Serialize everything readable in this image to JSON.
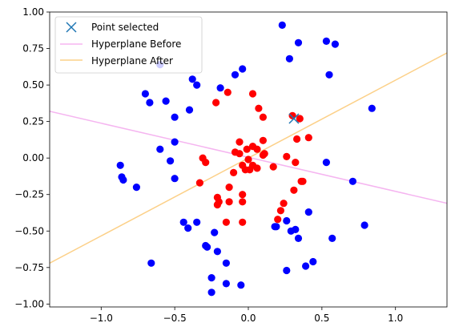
{
  "chart_data": {
    "type": "scatter",
    "xlim": [
      -1.35,
      1.35
    ],
    "ylim": [
      -1.02,
      1.0
    ],
    "x_ticks": [
      "−1.0",
      "−0.5",
      "0.0",
      "0.5",
      "1.0"
    ],
    "y_ticks": [
      "−1.00",
      "−0.75",
      "−0.50",
      "−0.25",
      "0.00",
      "0.25",
      "0.50",
      "0.75",
      "1.00"
    ],
    "grid": false,
    "legend_position": "top-left",
    "colors": {
      "class_blue": "#0000ff",
      "class_red": "#ff0000",
      "selected": "#1f77b4",
      "hyperplane_before": "#f5b5f0",
      "hyperplane_after": "#fcd088"
    },
    "legend": {
      "point_selected": "Point selected",
      "hyperplane_before": "Hyperplane Before",
      "hyperplane_after": "Hyperplane After"
    },
    "selected_point": {
      "x": 0.31,
      "y": 0.27
    },
    "hyperplane_before": {
      "x": [
        -1.35,
        1.35
      ],
      "y": [
        0.32,
        -0.31
      ]
    },
    "hyperplane_after": {
      "x": [
        -1.35,
        1.35
      ],
      "y": [
        -0.72,
        0.72
      ]
    },
    "series": [
      {
        "class": "blue",
        "points": [
          [
            0.23,
            0.91
          ],
          [
            0.34,
            0.79
          ],
          [
            0.53,
            0.8
          ],
          [
            0.59,
            0.78
          ],
          [
            0.28,
            0.68
          ],
          [
            0.55,
            0.57
          ],
          [
            -0.04,
            0.61
          ],
          [
            -0.09,
            0.57
          ],
          [
            -0.38,
            0.54
          ],
          [
            -0.35,
            0.5
          ],
          [
            -0.19,
            0.48
          ],
          [
            -0.6,
            0.64
          ],
          [
            -0.7,
            0.44
          ],
          [
            -0.56,
            0.39
          ],
          [
            -0.67,
            0.38
          ],
          [
            -0.4,
            0.33
          ],
          [
            -0.5,
            0.28
          ],
          [
            0.84,
            0.34
          ],
          [
            -0.5,
            0.11
          ],
          [
            -0.6,
            0.06
          ],
          [
            -0.53,
            -0.02
          ],
          [
            0.53,
            -0.03
          ],
          [
            -0.87,
            -0.05
          ],
          [
            -0.86,
            -0.13
          ],
          [
            -0.85,
            -0.15
          ],
          [
            -0.5,
            -0.14
          ],
          [
            -0.76,
            -0.2
          ],
          [
            0.71,
            -0.16
          ],
          [
            0.41,
            -0.37
          ],
          [
            -0.44,
            -0.44
          ],
          [
            -0.41,
            -0.48
          ],
          [
            -0.35,
            -0.44
          ],
          [
            0.26,
            -0.43
          ],
          [
            0.19,
            -0.47
          ],
          [
            0.18,
            -0.47
          ],
          [
            0.29,
            -0.5
          ],
          [
            0.32,
            -0.49
          ],
          [
            0.79,
            -0.46
          ],
          [
            -0.23,
            -0.51
          ],
          [
            0.34,
            -0.55
          ],
          [
            0.57,
            -0.55
          ],
          [
            -0.29,
            -0.6
          ],
          [
            -0.28,
            -0.61
          ],
          [
            -0.21,
            -0.64
          ],
          [
            -0.66,
            -0.72
          ],
          [
            -0.15,
            -0.72
          ],
          [
            0.44,
            -0.71
          ],
          [
            0.39,
            -0.74
          ],
          [
            0.26,
            -0.77
          ],
          [
            -0.25,
            -0.82
          ],
          [
            -0.15,
            -0.86
          ],
          [
            -0.05,
            -0.87
          ],
          [
            -0.25,
            -0.92
          ]
        ]
      },
      {
        "class": "red",
        "points": [
          [
            -0.14,
            0.45
          ],
          [
            0.03,
            0.44
          ],
          [
            -0.22,
            0.38
          ],
          [
            0.07,
            0.34
          ],
          [
            0.1,
            0.28
          ],
          [
            0.3,
            0.29
          ],
          [
            0.35,
            0.27
          ],
          [
            0.33,
            0.13
          ],
          [
            0.41,
            0.14
          ],
          [
            -0.06,
            0.11
          ],
          [
            0.1,
            0.12
          ],
          [
            -0.01,
            0.06
          ],
          [
            0.03,
            0.08
          ],
          [
            -0.09,
            0.04
          ],
          [
            -0.06,
            0.03
          ],
          [
            0.06,
            0.06
          ],
          [
            0.11,
            0.03
          ],
          [
            0.1,
            0.02
          ],
          [
            0.0,
            -0.01
          ],
          [
            -0.31,
            0.0
          ],
          [
            -0.29,
            -0.03
          ],
          [
            0.26,
            0.01
          ],
          [
            0.32,
            -0.03
          ],
          [
            -0.04,
            -0.05
          ],
          [
            0.03,
            -0.05
          ],
          [
            0.06,
            -0.07
          ],
          [
            0.17,
            -0.06
          ],
          [
            -0.02,
            -0.08
          ],
          [
            -0.1,
            -0.1
          ],
          [
            0.01,
            -0.08
          ],
          [
            -0.33,
            -0.17
          ],
          [
            0.36,
            -0.16
          ],
          [
            0.37,
            -0.16
          ],
          [
            -0.13,
            -0.2
          ],
          [
            -0.04,
            -0.25
          ],
          [
            0.31,
            -0.22
          ],
          [
            -0.21,
            -0.27
          ],
          [
            -0.2,
            -0.3
          ],
          [
            -0.13,
            -0.3
          ],
          [
            -0.04,
            -0.3
          ],
          [
            0.24,
            -0.31
          ],
          [
            -0.21,
            -0.32
          ],
          [
            0.22,
            -0.36
          ],
          [
            0.2,
            -0.42
          ],
          [
            -0.15,
            -0.44
          ],
          [
            -0.04,
            -0.44
          ]
        ]
      }
    ]
  }
}
